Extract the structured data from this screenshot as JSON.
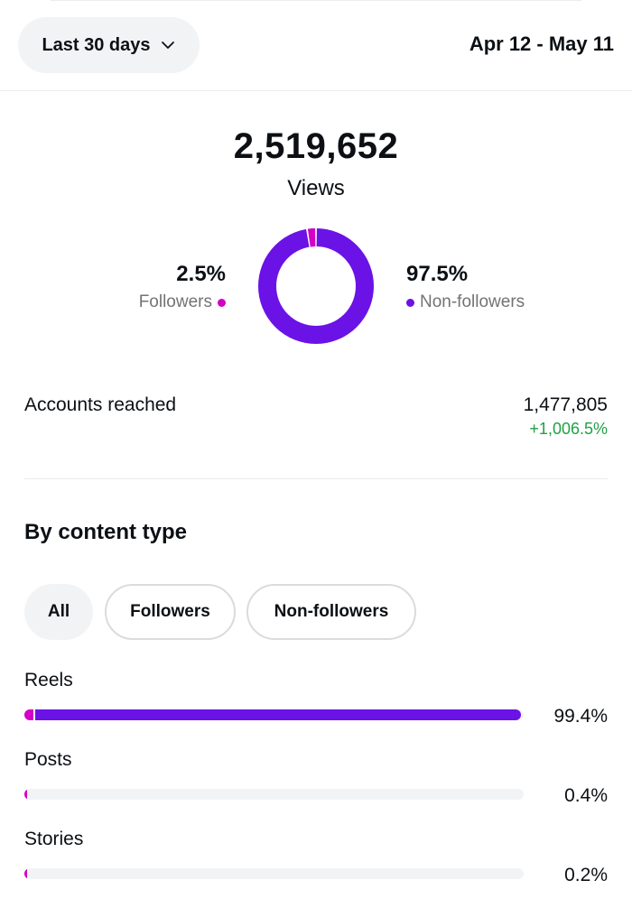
{
  "header": {
    "range_label": "Last 30 days",
    "date_range": "Apr 12 - May 11"
  },
  "views": {
    "total": "2,519,652",
    "label": "Views",
    "followers_pct": "2.5%",
    "followers_label": "Followers",
    "followers_value": 2.5,
    "non_followers_pct": "97.5%",
    "non_followers_label": "Non-followers",
    "non_followers_value": 97.5
  },
  "accounts": {
    "label": "Accounts reached",
    "value": "1,477,805",
    "delta": "+1,006.5%"
  },
  "content_type": {
    "title": "By content type",
    "filters": [
      {
        "label": "All",
        "active": true
      },
      {
        "label": "Followers",
        "active": false
      },
      {
        "label": "Non-followers",
        "active": false
      }
    ],
    "rows": [
      {
        "name": "Reels",
        "pct": "99.4%",
        "value": 99.4
      },
      {
        "name": "Posts",
        "pct": "0.4%",
        "value": 0.4
      },
      {
        "name": "Stories",
        "pct": "0.2%",
        "value": 0.2
      }
    ]
  },
  "colors": {
    "followers": "#d300c5",
    "non_followers": "#6b12e6",
    "positive": "#21a044"
  },
  "icons": {
    "range_dropdown": "chevron-down-icon"
  }
}
